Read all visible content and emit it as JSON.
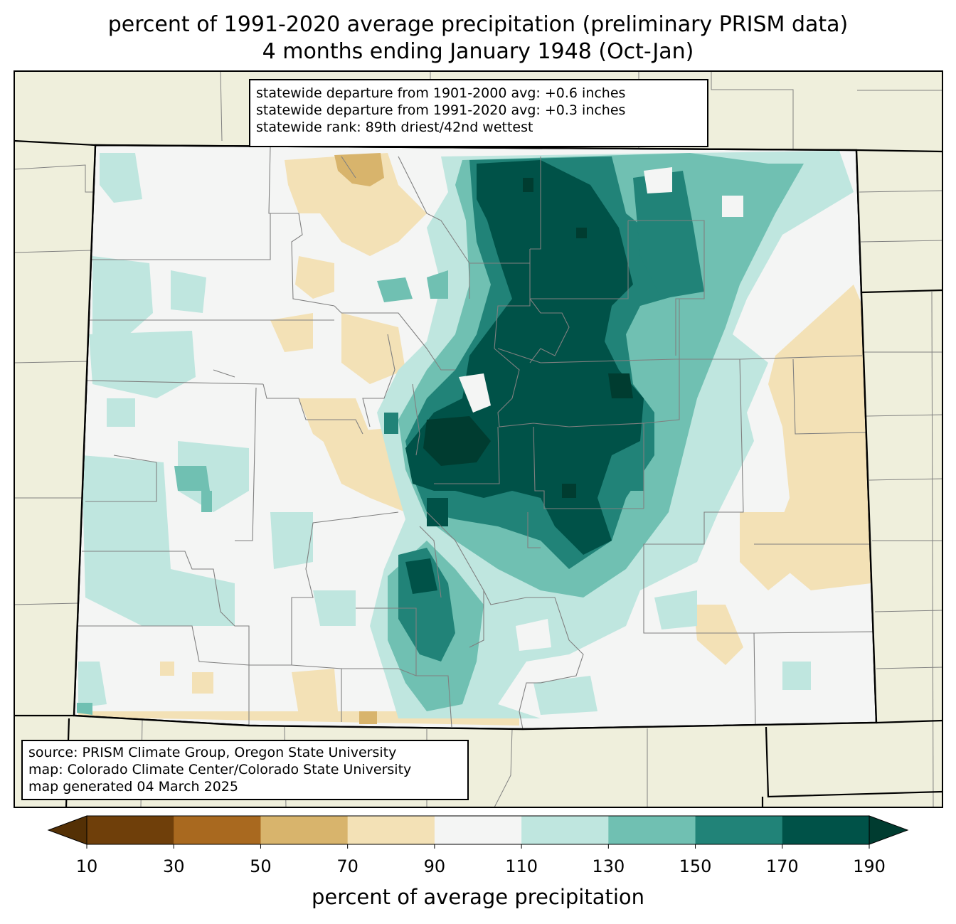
{
  "title": {
    "line1": "percent of 1991-2020 average precipitation (preliminary PRISM data)",
    "line2": "4 months ending January 1948 (Oct-Jan)"
  },
  "stats_box": {
    "line1": "statewide departure from 1901-2000 avg: +0.6 inches",
    "line2": "statewide departure from 1991-2020 avg: +0.3 inches",
    "line3": "statewide rank: 89th driest/42nd wettest"
  },
  "source_box": {
    "line1": "source: PRISM Climate Group, Oregon State University",
    "line2": "map: Colorado Climate Center/Colorado State University",
    "line3": "map generated 04 March 2025"
  },
  "colorbar": {
    "label": "percent of average precipitation",
    "ticks": [
      "10",
      "30",
      "50",
      "70",
      "90",
      "110",
      "130",
      "150",
      "170",
      "190"
    ],
    "under_color": "#543005",
    "over_color": "#003c30",
    "bin_colors": [
      "#6f3f0a",
      "#a9691f",
      "#d8b46c",
      "#f3e1b6",
      "#f4f5f4",
      "#bfe6df",
      "#70c0b2",
      "#218378",
      "#005248"
    ]
  },
  "map_colors": {
    "background_land": "#efefdc",
    "county_lines": "#808080",
    "state_lines": "#000000"
  }
}
